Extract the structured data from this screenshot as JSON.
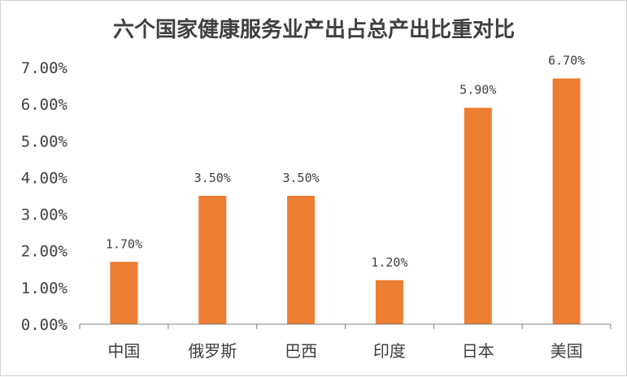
{
  "chart_data": {
    "type": "bar",
    "title": "六个国家健康服务业产出占总产出比重对比",
    "categories": [
      "中国",
      "俄罗斯",
      "巴西",
      "印度",
      "日本",
      "美国"
    ],
    "values": [
      1.7,
      3.5,
      3.5,
      1.2,
      5.9,
      6.7
    ],
    "data_labels": [
      "1.70%",
      "3.50%",
      "3.50%",
      "1.20%",
      "5.90%",
      "6.70%"
    ],
    "y_ticks": [
      "0.00%",
      "1.00%",
      "2.00%",
      "3.00%",
      "4.00%",
      "5.00%",
      "6.00%",
      "7.00%"
    ],
    "ylim": [
      0,
      7
    ],
    "xlabel": "",
    "ylabel": "",
    "grid": false,
    "legend": "none",
    "bar_color": "#ED7D31",
    "axis_color": "#808080"
  }
}
